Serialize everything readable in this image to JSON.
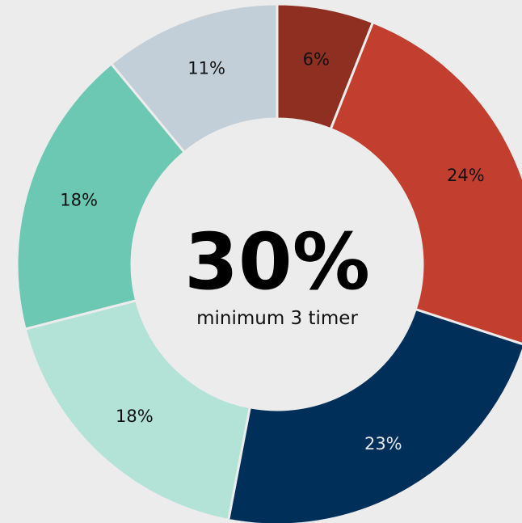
{
  "chart_data": {
    "type": "pie",
    "donut": true,
    "center_value": "30%",
    "center_caption": "minimum 3 timer",
    "start_angle_deg": 0,
    "direction": "clockwise",
    "legend": "none",
    "slices": [
      {
        "label": "6%",
        "value": 6,
        "color": "#8e2f22",
        "label_color": "#111111"
      },
      {
        "label": "24%",
        "value": 24,
        "color": "#c23e2f",
        "label_color": "#111111"
      },
      {
        "label": "23%",
        "value": 23,
        "color": "#00305a",
        "label_color": "#e6e6e6"
      },
      {
        "label": "18%",
        "value": 18,
        "color": "#b3e2d6",
        "label_color": "#111111"
      },
      {
        "label": "18%",
        "value": 18,
        "color": "#6cc7b3",
        "label_color": "#111111"
      },
      {
        "label": "11%",
        "value": 11,
        "color": "#c2cfd8",
        "label_color": "#111111"
      }
    ],
    "background_color": "#ececec",
    "separator_color": "#ececec"
  }
}
